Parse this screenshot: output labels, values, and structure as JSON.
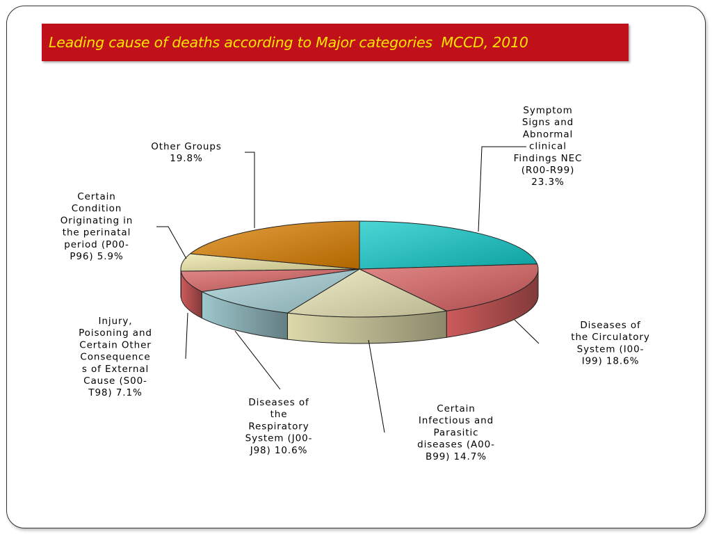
{
  "title": "Leading cause of deaths according to Major categories  MCCD, 2010",
  "chart_data": {
    "type": "pie",
    "title": "Leading cause of deaths according to Major categories  MCCD, 2010",
    "slices": [
      {
        "label": [
          "Symptom",
          "Signs and",
          "Abnormal",
          "clinical",
          "Findings NEC",
          "(R00-R99)",
          "23.3%"
        ],
        "value": 23.3,
        "color": "#10c8c8"
      },
      {
        "label": [
          "Diseases of",
          "the Circulatory",
          "System (I00-",
          "I99) 18.6%"
        ],
        "value": 18.6,
        "color": "#d86060"
      },
      {
        "label": [
          "Certain",
          "Infectious and",
          "Parasitic",
          "diseases (A00-",
          "B99) 14.7%"
        ],
        "value": 14.7,
        "color": "#e9e4b4"
      },
      {
        "label": [
          "Diseases of",
          "the",
          "Respiratory",
          "System (J00-",
          "J98) 10.6%"
        ],
        "value": 10.6,
        "color": "#a6d2d8"
      },
      {
        "label": [
          "Injury,",
          "Poisoning and",
          "Certain Other",
          "Consequence",
          "s of External",
          "Cause (S00-",
          "T98) 7.1%"
        ],
        "value": 7.1,
        "color": "#d86060"
      },
      {
        "label": [
          "Certain",
          "Condition",
          "Originating in",
          "the perinatal",
          "period (P00-",
          "P96) 5.9%"
        ],
        "value": 5.9,
        "color": "#ece6a4"
      },
      {
        "label": [
          "Other Groups",
          "19.8%"
        ],
        "value": 19.8,
        "color": "#dc8000"
      }
    ]
  }
}
